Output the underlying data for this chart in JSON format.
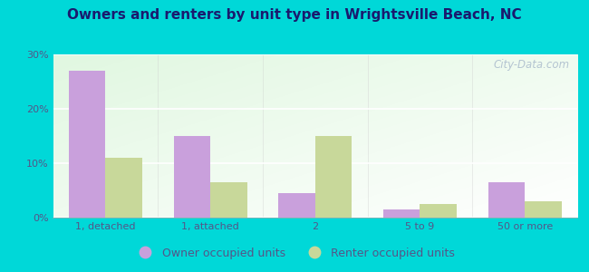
{
  "title": "Owners and renters by unit type in Wrightsville Beach, NC",
  "categories": [
    "1, detached",
    "1, attached",
    "2",
    "5 to 9",
    "50 or more"
  ],
  "owner_values": [
    27.0,
    15.0,
    4.5,
    1.5,
    6.5
  ],
  "renter_values": [
    11.0,
    6.5,
    15.0,
    2.5,
    3.0
  ],
  "owner_color": "#c9a0dc",
  "renter_color": "#c8d89a",
  "ylim": [
    0,
    30
  ],
  "yticks": [
    0,
    10,
    20,
    30
  ],
  "ytick_labels": [
    "0%",
    "10%",
    "20%",
    "30%"
  ],
  "background_outer": "#00d8d8",
  "legend_owner": "Owner occupied units",
  "legend_renter": "Renter occupied units",
  "watermark": "City-Data.com",
  "bar_width": 0.35,
  "title_color": "#1a1a6e",
  "tick_color": "#555588"
}
